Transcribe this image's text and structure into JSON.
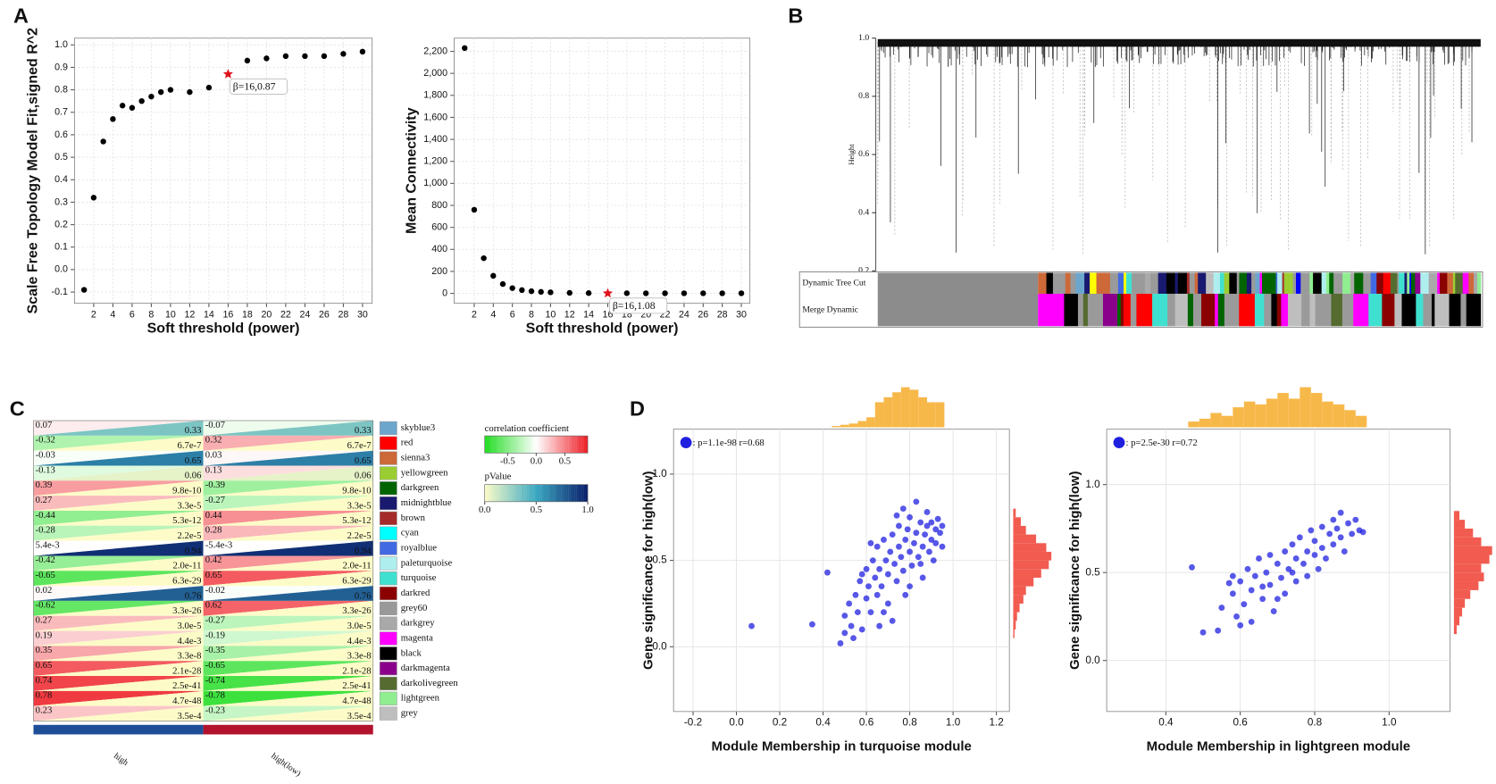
{
  "panel_labels": [
    "A",
    "B",
    "C",
    "D"
  ],
  "chart_data": [
    {
      "type": "scatter",
      "xlabel": "Soft threshold (power)",
      "ylabel": "Scale Free Topology Model Fit,signed R^2",
      "x": [
        1,
        2,
        3,
        4,
        5,
        6,
        7,
        8,
        9,
        10,
        12,
        14,
        18,
        20,
        22,
        24,
        26,
        28,
        30
      ],
      "values": [
        -0.09,
        0.32,
        0.57,
        0.67,
        0.73,
        0.72,
        0.75,
        0.77,
        0.79,
        0.8,
        0.79,
        0.81,
        0.93,
        0.94,
        0.95,
        0.95,
        0.95,
        0.96,
        0.97
      ],
      "color": "#000000",
      "highlight": {
        "x": [
          16
        ],
        "values": [
          0.87
        ],
        "color": "#e0141e",
        "marker": "star",
        "annotation": "β=16,0.87"
      },
      "xlim": [
        0,
        31
      ],
      "ylim": [
        -0.15,
        1.03
      ],
      "xticks": [
        2,
        4,
        6,
        8,
        10,
        12,
        14,
        16,
        18,
        20,
        22,
        24,
        26,
        28,
        30
      ],
      "yticks": [
        -0.1,
        {
          "value": 0,
          "label": "0.0"
        },
        0.1,
        0.2,
        0.3,
        0.4,
        0.5,
        0.6,
        0.7,
        0.8,
        0.9,
        {
          "value": 1,
          "label": "1.0"
        }
      ],
      "grid": true
    },
    {
      "type": "scatter",
      "xlabel": "Soft threshold (power)",
      "ylabel": "Mean Connectivity",
      "x": [
        1,
        2,
        3,
        4,
        5,
        6,
        7,
        8,
        9,
        10,
        12,
        14,
        18,
        20,
        22,
        24,
        26,
        28,
        30
      ],
      "values": [
        2230,
        760,
        320,
        160,
        85,
        48,
        30,
        20,
        14,
        10,
        5,
        3,
        2,
        1,
        1,
        1,
        1,
        1,
        1
      ],
      "color": "#000000",
      "highlight": {
        "x": [
          16
        ],
        "values": [
          1.08
        ],
        "color": "#e0141e",
        "marker": "star",
        "annotation": "β=16,1.08"
      },
      "xlim": [
        -0.1,
        30.9
      ],
      "ylim": [
        -90,
        2320
      ],
      "xticks": [
        2,
        4,
        6,
        8,
        10,
        12,
        14,
        16,
        18,
        20,
        22,
        24,
        26,
        28,
        30
      ],
      "yticks": [
        0,
        200,
        400,
        600,
        800,
        {
          "value": 1000,
          "label": "1,000"
        },
        {
          "value": 1200,
          "label": "1,200"
        },
        {
          "value": 1400,
          "label": "1,400"
        },
        {
          "value": 1600,
          "label": "1,600"
        },
        {
          "value": 1800,
          "label": "1,800"
        },
        {
          "value": 2000,
          "label": "2,000"
        },
        {
          "value": 2200,
          "label": "2,200"
        }
      ],
      "grid": true
    },
    {
      "type": "dendrogram",
      "ylabel": "Height",
      "ylim": [
        0.2,
        1.0
      ],
      "yticks": [
        0.2,
        0.4,
        0.6,
        0.8,
        {
          "value": 1,
          "label": "1.0"
        }
      ],
      "color_rows": [
        "Dynamic Tree Cut",
        "Merge Dynamic"
      ]
    },
    {
      "type": "heatmap",
      "modules": [
        "skyblue3",
        "red",
        "sienna3",
        "yellowgreen",
        "darkgreen",
        "midnightblue",
        "brown",
        "cyan",
        "royalblue",
        "paleturquoise",
        "turquoise",
        "darkred",
        "grey60",
        "darkgrey",
        "magenta",
        "black",
        "darkmagenta",
        "darkolivegreen",
        "lightgreen",
        "grey"
      ],
      "module_colors": [
        "#6ca6cd",
        "#ff0000",
        "#cd6839",
        "#9acd32",
        "#006400",
        "#191970",
        "#a52a2a",
        "#00ffff",
        "#4169e1",
        "#afeeee",
        "#40e0d0",
        "#8b0000",
        "#999999",
        "#a9a9a9",
        "#ff00ff",
        "#000000",
        "#8b008b",
        "#556b2f",
        "#90ee90",
        "#bebebe"
      ],
      "series": [
        {
          "name": "high",
          "color": "#1f4e99",
          "correlation": [
            0.07,
            -0.32,
            -0.03,
            -0.13,
            0.39,
            0.27,
            -0.44,
            -0.28,
            0.0054,
            -0.42,
            -0.65,
            0.02,
            -0.62,
            0.27,
            0.19,
            0.35,
            0.65,
            0.74,
            0.78,
            0.23
          ],
          "correlation_labels": [
            "0.07",
            "-0.32",
            "-0.03",
            "-0.13",
            "0.39",
            "0.27",
            "-0.44",
            "-0.28",
            "5.4e-3",
            "-0.42",
            "-0.65",
            "0.02",
            "-0.62",
            "0.27",
            "0.19",
            "0.35",
            "0.65",
            "0.74",
            "0.78",
            "0.23"
          ],
          "pvalue": [
            0.33,
            6.7e-07,
            0.65,
            0.06,
            9.8e-10,
            3.3e-05,
            5.3e-12,
            2.2e-05,
            0.94,
            2e-11,
            6.3e-29,
            0.76,
            3.3e-26,
            3e-05,
            0.0044,
            3.3e-08,
            2.1e-28,
            2.5e-41,
            4.7e-48,
            0.00035
          ],
          "pvalue_labels": [
            "0.33",
            "6.7e-7",
            "0.65",
            "0.06",
            "9.8e-10",
            "3.3e-5",
            "5.3e-12",
            "2.2e-5",
            "0.94",
            "2.0e-11",
            "6.3e-29",
            "0.76",
            "3.3e-26",
            "3.0e-5",
            "4.4e-3",
            "3.3e-8",
            "2.1e-28",
            "2.5e-41",
            "4.7e-48",
            "3.5e-4"
          ]
        },
        {
          "name": "high(low)",
          "color": "#b3122e",
          "correlation": [
            -0.07,
            0.32,
            0.03,
            0.13,
            -0.39,
            -0.27,
            0.44,
            0.28,
            -0.0054,
            0.42,
            0.65,
            -0.02,
            0.62,
            -0.27,
            -0.19,
            -0.35,
            -0.65,
            -0.74,
            -0.78,
            -0.23
          ],
          "correlation_labels": [
            "-0.07",
            "0.32",
            "0.03",
            "0.13",
            "-0.39",
            "-0.27",
            "0.44",
            "0.28",
            "-5.4e-3",
            "0.42",
            "0.65",
            "-0.02",
            "0.62",
            "-0.27",
            "-0.19",
            "-0.35",
            "-0.65",
            "-0.74",
            "-0.78",
            "-0.23"
          ],
          "pvalue": [
            0.33,
            6.7e-07,
            0.65,
            0.06,
            9.8e-10,
            3.3e-05,
            5.3e-12,
            2.2e-05,
            0.94,
            2e-11,
            6.3e-29,
            0.76,
            3.3e-26,
            3e-05,
            0.0044,
            3.3e-08,
            2.1e-28,
            2.5e-41,
            4.7e-48,
            0.00035
          ],
          "pvalue_labels": [
            "0.33",
            "6.7e-7",
            "0.65",
            "0.06",
            "9.8e-10",
            "3.3e-5",
            "5.3e-12",
            "2.2e-5",
            "0.94",
            "2.0e-11",
            "6.3e-29",
            "0.76",
            "3.3e-26",
            "3.0e-5",
            "4.4e-3",
            "3.3e-8",
            "2.1e-28",
            "2.5e-41",
            "4.7e-48",
            "3.5e-4"
          ]
        }
      ],
      "correlation_title": "correlation coefficient",
      "correlation_lim": [
        -0.9,
        0.9
      ],
      "correlation_ticks": [
        -0.5,
        {
          "value": 0,
          "label": "0.0"
        },
        0.5
      ],
      "pvalue_title": "pValue",
      "pvalue_lim": [
        0,
        1
      ],
      "pvalue_ticks": [
        {
          "value": 0,
          "label": "0.0"
        },
        0.5,
        {
          "value": 1,
          "label": "1.0"
        }
      ]
    },
    {
      "type": "scatter",
      "xlabel": "Module Membership in turquoise module",
      "ylabel": "Gene significance for high(low)",
      "annotation": ": p=1.1e-98 r=0.68",
      "color": "#1f1fe0",
      "x": [
        0.07,
        0.35,
        0.42,
        0.48,
        0.5,
        0.5,
        0.52,
        0.53,
        0.55,
        0.56,
        0.57,
        0.58,
        0.6,
        0.6,
        0.61,
        0.62,
        0.63,
        0.64,
        0.65,
        0.65,
        0.66,
        0.67,
        0.68,
        0.69,
        0.7,
        0.7,
        0.71,
        0.72,
        0.73,
        0.74,
        0.75,
        0.75,
        0.76,
        0.77,
        0.78,
        0.78,
        0.79,
        0.8,
        0.8,
        0.81,
        0.82,
        0.83,
        0.83,
        0.84,
        0.85,
        0.86,
        0.86,
        0.87,
        0.88,
        0.88,
        0.89,
        0.9,
        0.9,
        0.91,
        0.92,
        0.92,
        0.93,
        0.94,
        0.95,
        0.95,
        0.72,
        0.68,
        0.58,
        0.62,
        0.8,
        0.85,
        0.77,
        0.74,
        0.66,
        0.54
      ],
      "values": [
        0.12,
        0.13,
        0.43,
        0.02,
        0.08,
        0.18,
        0.25,
        0.12,
        0.3,
        0.2,
        0.38,
        0.1,
        0.28,
        0.45,
        0.35,
        0.2,
        0.5,
        0.4,
        0.3,
        0.58,
        0.45,
        0.35,
        0.62,
        0.5,
        0.42,
        0.25,
        0.55,
        0.65,
        0.48,
        0.38,
        0.58,
        0.7,
        0.52,
        0.44,
        0.62,
        0.3,
        0.68,
        0.55,
        0.75,
        0.47,
        0.6,
        0.84,
        0.66,
        0.52,
        0.72,
        0.58,
        0.4,
        0.65,
        0.7,
        0.78,
        0.55,
        0.62,
        0.72,
        0.5,
        0.68,
        0.6,
        0.74,
        0.66,
        0.7,
        0.58,
        0.15,
        0.2,
        0.42,
        0.6,
        0.35,
        0.48,
        0.8,
        0.76,
        0.12,
        0.05
      ],
      "x_hist": {
        "bins": [
          0.44,
          0.48,
          0.52,
          0.56,
          0.6,
          0.64,
          0.68,
          0.72,
          0.76,
          0.8,
          0.84,
          0.88,
          0.92,
          0.96
        ],
        "counts": [
          1,
          2,
          3,
          5,
          8,
          20,
          24,
          28,
          32,
          30,
          24,
          20,
          20
        ],
        "color": "#f7b84a"
      },
      "y_hist": {
        "bins": [
          0.05,
          0.1,
          0.15,
          0.2,
          0.25,
          0.3,
          0.35,
          0.4,
          0.45,
          0.5,
          0.55,
          0.6,
          0.65,
          0.7,
          0.75,
          0.8
        ],
        "counts": [
          1,
          2,
          3,
          5,
          8,
          10,
          16,
          22,
          28,
          30,
          26,
          18,
          10,
          6,
          2
        ],
        "color": "#f15b50"
      },
      "xlim": [
        -0.29,
        1.26
      ],
      "ylim": [
        -0.375,
        1.26
      ],
      "xticks": [
        -0.2,
        {
          "value": 0,
          "label": "0.0"
        },
        0.2,
        0.4,
        0.6,
        0.8,
        {
          "value": 1,
          "label": "1.0"
        },
        1.2
      ],
      "yticks": [
        {
          "value": 0,
          "label": "0.0"
        },
        0.5,
        {
          "value": 1,
          "label": "1.0"
        }
      ],
      "grid": true
    },
    {
      "type": "scatter",
      "xlabel": "Module Membership in lightgreen module",
      "ylabel": "Gene significance for high(low)",
      "annotation": ": p=2.5e-30 r=0.72",
      "color": "#1f1fe0",
      "x": [
        0.47,
        0.5,
        0.54,
        0.55,
        0.57,
        0.58,
        0.59,
        0.6,
        0.61,
        0.62,
        0.63,
        0.63,
        0.64,
        0.65,
        0.66,
        0.67,
        0.68,
        0.68,
        0.69,
        0.7,
        0.71,
        0.72,
        0.72,
        0.73,
        0.74,
        0.75,
        0.75,
        0.76,
        0.77,
        0.78,
        0.78,
        0.79,
        0.8,
        0.8,
        0.81,
        0.82,
        0.82,
        0.83,
        0.84,
        0.85,
        0.85,
        0.86,
        0.87,
        0.87,
        0.88,
        0.89,
        0.9,
        0.91,
        0.92,
        0.93,
        0.6,
        0.66,
        0.7,
        0.74,
        0.58
      ],
      "values": [
        0.53,
        0.16,
        0.17,
        0.3,
        0.44,
        0.38,
        0.25,
        0.45,
        0.32,
        0.52,
        0.4,
        0.22,
        0.48,
        0.58,
        0.35,
        0.5,
        0.43,
        0.6,
        0.28,
        0.55,
        0.47,
        0.62,
        0.38,
        0.52,
        0.66,
        0.45,
        0.58,
        0.7,
        0.55,
        0.62,
        0.48,
        0.74,
        0.6,
        0.68,
        0.52,
        0.76,
        0.64,
        0.58,
        0.72,
        0.8,
        0.66,
        0.75,
        0.7,
        0.84,
        0.62,
        0.78,
        0.72,
        0.8,
        0.74,
        0.73,
        0.2,
        0.42,
        0.35,
        0.5,
        0.48
      ],
      "x_hist": {
        "bins": [
          0.46,
          0.49,
          0.52,
          0.55,
          0.58,
          0.61,
          0.64,
          0.67,
          0.7,
          0.73,
          0.76,
          0.79,
          0.82,
          0.85,
          0.88,
          0.91,
          0.94
        ],
        "counts": [
          2,
          3,
          5,
          4,
          7,
          9,
          8,
          10,
          12,
          10,
          14,
          12,
          9,
          8,
          6,
          4
        ],
        "color": "#f7b84a"
      },
      "y_hist": {
        "bins": [
          0.15,
          0.2,
          0.25,
          0.3,
          0.35,
          0.4,
          0.45,
          0.5,
          0.55,
          0.6,
          0.65,
          0.7,
          0.75,
          0.8,
          0.85
        ],
        "counts": [
          1,
          2,
          3,
          4,
          6,
          9,
          11,
          10,
          13,
          14,
          10,
          7,
          4,
          2
        ],
        "color": "#f15b50"
      },
      "xlim": [
        0.241,
        1.164
      ],
      "ylim": [
        -0.29,
        1.315
      ],
      "xticks": [
        0.4,
        0.6,
        0.8,
        {
          "value": 1,
          "label": "1.0"
        }
      ],
      "yticks": [
        {
          "value": 0,
          "label": "0.0"
        },
        0.5,
        {
          "value": 1,
          "label": "1.0"
        }
      ],
      "grid": true
    }
  ]
}
